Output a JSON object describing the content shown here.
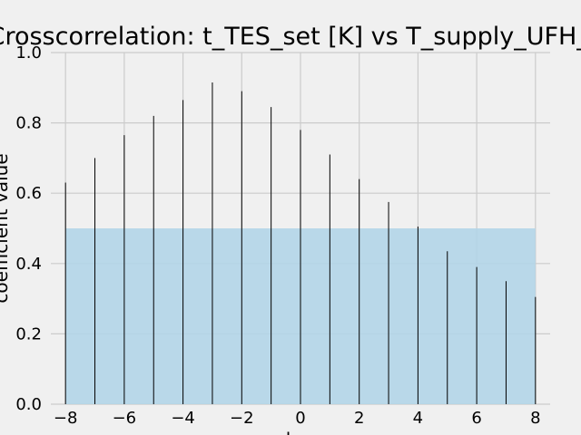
{
  "chart_data": {
    "type": "bar",
    "title": "Crosscorrelation: t_TES_set [K] vs T_supply_UFH_in",
    "xlabel": "lag",
    "ylabel": "coefficient value",
    "x": [
      -8,
      -7,
      -6,
      -5,
      -4,
      -3,
      -2,
      -1,
      0,
      1,
      2,
      3,
      4,
      5,
      6,
      7,
      8
    ],
    "values": [
      0.63,
      0.7,
      0.765,
      0.82,
      0.865,
      0.915,
      0.89,
      0.845,
      0.78,
      0.71,
      0.64,
      0.575,
      0.505,
      0.435,
      0.39,
      0.35,
      0.305
    ],
    "xlim": [
      -8.5,
      8.5
    ],
    "ylim": [
      0,
      1.0
    ],
    "x_ticks": [
      -8,
      -6,
      -4,
      -2,
      0,
      2,
      4,
      6,
      8
    ],
    "x_tick_labels": [
      "−8",
      "−6",
      "−4",
      "−2",
      "0",
      "2",
      "4",
      "6",
      "8"
    ],
    "y_ticks": [
      0.0,
      0.2,
      0.4,
      0.6,
      0.8,
      1.0
    ],
    "y_tick_labels": [
      "0.0",
      "0.2",
      "0.4",
      "0.6",
      "0.8",
      "1.0"
    ],
    "threshold_band": {
      "x_range": [
        -8,
        8
      ],
      "y_range": [
        0,
        0.5
      ]
    },
    "grid": true,
    "colors": {
      "background": "#f0f0f0",
      "grid": "#cbcbcb",
      "bars": "#000000",
      "band": "#b3d5e8"
    }
  }
}
